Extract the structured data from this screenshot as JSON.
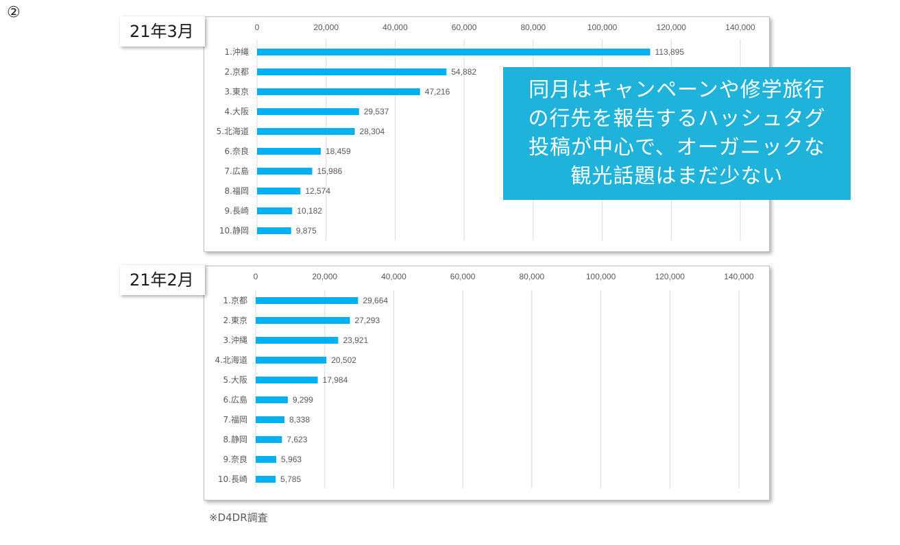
{
  "slide_marker": "②",
  "callout_lines": [
    "同月はキャンペーンや修学旅行",
    "の行先を報告するハッシュタグ",
    "投稿が中心で、オーガニックな",
    "観光話題はまだ少ない"
  ],
  "footnote": "※D4DR調査",
  "colors": {
    "bar": "#00b0f0",
    "callout_bg": "#1fb3dc",
    "grid": "#d9d9d9"
  },
  "chart_data": [
    {
      "type": "bar",
      "orientation": "horizontal",
      "period_label": "21年3月",
      "categories": [
        "1.沖縄",
        "2.京都",
        "3.東京",
        "4.大阪",
        "5.北海道",
        "6.奈良",
        "7.広島",
        "8.福岡",
        "9.長崎",
        "10.静岡"
      ],
      "values": [
        113895,
        54882,
        47216,
        29537,
        28304,
        18459,
        15986,
        12574,
        10182,
        9875
      ],
      "value_labels": [
        "113,895",
        "54,882",
        "47,216",
        "29,537",
        "28,304",
        "18,459",
        "15,986",
        "12,574",
        "10,182",
        "9,875"
      ],
      "xlim": [
        0,
        140000
      ],
      "ticks": [
        "0",
        "20,000",
        "40,000",
        "60,000",
        "80,000",
        "100,000",
        "120,000",
        "140,000"
      ],
      "grid": true,
      "axis_position": "top"
    },
    {
      "type": "bar",
      "orientation": "horizontal",
      "period_label": "21年2月",
      "categories": [
        "1.京都",
        "2.東京",
        "3.沖縄",
        "4.北海道",
        "5.大阪",
        "6.広島",
        "7.福岡",
        "8.静岡",
        "9.奈良",
        "10.長崎"
      ],
      "values": [
        29664,
        27293,
        23921,
        20502,
        17984,
        9299,
        8338,
        7623,
        5963,
        5785
      ],
      "value_labels": [
        "29,664",
        "27,293",
        "23,921",
        "20,502",
        "17,984",
        "9,299",
        "8,338",
        "7,623",
        "5,963",
        "5,785"
      ],
      "xlim": [
        0,
        140000
      ],
      "ticks": [
        "0",
        "20,000",
        "40,000",
        "60,000",
        "80,000",
        "100,000",
        "120,000",
        "140,000"
      ],
      "grid": true,
      "axis_position": "top"
    }
  ]
}
